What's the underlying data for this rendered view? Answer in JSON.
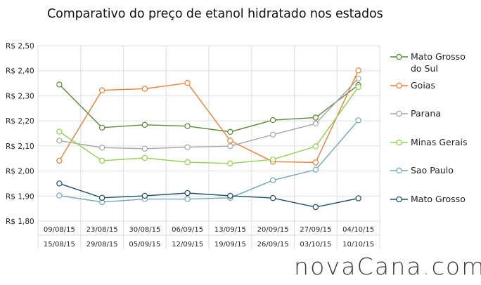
{
  "chart_data": {
    "type": "line",
    "title": "Comparativo do preço de etanol hidratado nos estados",
    "xlabel": "",
    "ylabel": "",
    "ylim": [
      1.8,
      2.5
    ],
    "yticks": [
      {
        "value": 2.5,
        "label": "R$ 2,50"
      },
      {
        "value": 2.4,
        "label": "R$ 2,40"
      },
      {
        "value": 2.3,
        "label": "R$ 2,30"
      },
      {
        "value": 2.2,
        "label": "R$ 2,20"
      },
      {
        "value": 2.1,
        "label": "R$ 2,10"
      },
      {
        "value": 2.0,
        "label": "R$ 2,00"
      },
      {
        "value": 1.9,
        "label": "R$ 1,90"
      },
      {
        "value": 1.8,
        "label": "R$ 1,80"
      }
    ],
    "categories": [
      {
        "start": "09/08/15",
        "end": "15/08/15"
      },
      {
        "start": "23/08/15",
        "end": "29/08/15"
      },
      {
        "start": "30/08/15",
        "end": "05/09/15"
      },
      {
        "start": "06/09/15",
        "end": "12/09/15"
      },
      {
        "start": "13/09/15",
        "end": "19/09/15"
      },
      {
        "start": "20/09/15",
        "end": "26/09/15"
      },
      {
        "start": "27/09/15",
        "end": "03/10/15"
      },
      {
        "start": "04/10/15",
        "end": "10/10/15"
      }
    ],
    "grid": true,
    "legend_position": "right",
    "series": [
      {
        "name": "Mato Grosso do Sul",
        "color": "#5a8a35",
        "values": [
          2.345,
          2.173,
          2.184,
          2.179,
          2.156,
          2.203,
          2.213,
          2.343
        ]
      },
      {
        "name": "Goias",
        "color": "#ed7d31",
        "values": [
          2.041,
          2.322,
          2.328,
          2.351,
          2.121,
          2.037,
          2.034,
          2.401
        ]
      },
      {
        "name": "Parana",
        "color": "#a5a5a5",
        "values": [
          2.121,
          2.093,
          2.089,
          2.095,
          2.099,
          2.145,
          2.189,
          2.369
        ]
      },
      {
        "name": "Minas Gerais",
        "color": "#92d050",
        "values": [
          2.157,
          2.041,
          2.052,
          2.035,
          2.03,
          2.046,
          2.098,
          2.335
        ]
      },
      {
        "name": "Sao Paulo",
        "color": "#6ea6b8",
        "values": [
          1.902,
          1.876,
          1.888,
          1.888,
          1.893,
          1.963,
          2.005,
          2.202
        ]
      },
      {
        "name": "Mato Grosso",
        "color": "#1f4e66",
        "values": [
          1.95,
          1.893,
          1.901,
          1.912,
          1.901,
          1.892,
          1.856,
          1.891
        ]
      }
    ],
    "legend_lines": [
      [
        "Mato Grosso",
        "do Sul"
      ],
      [
        "Goias"
      ],
      [
        "Parana"
      ],
      [
        "Minas Gerais"
      ],
      [
        "Sao Paulo"
      ],
      [
        "Mato Grosso"
      ]
    ]
  },
  "brand": {
    "before": "novaCana",
    "dot": ".",
    "after": "com"
  }
}
